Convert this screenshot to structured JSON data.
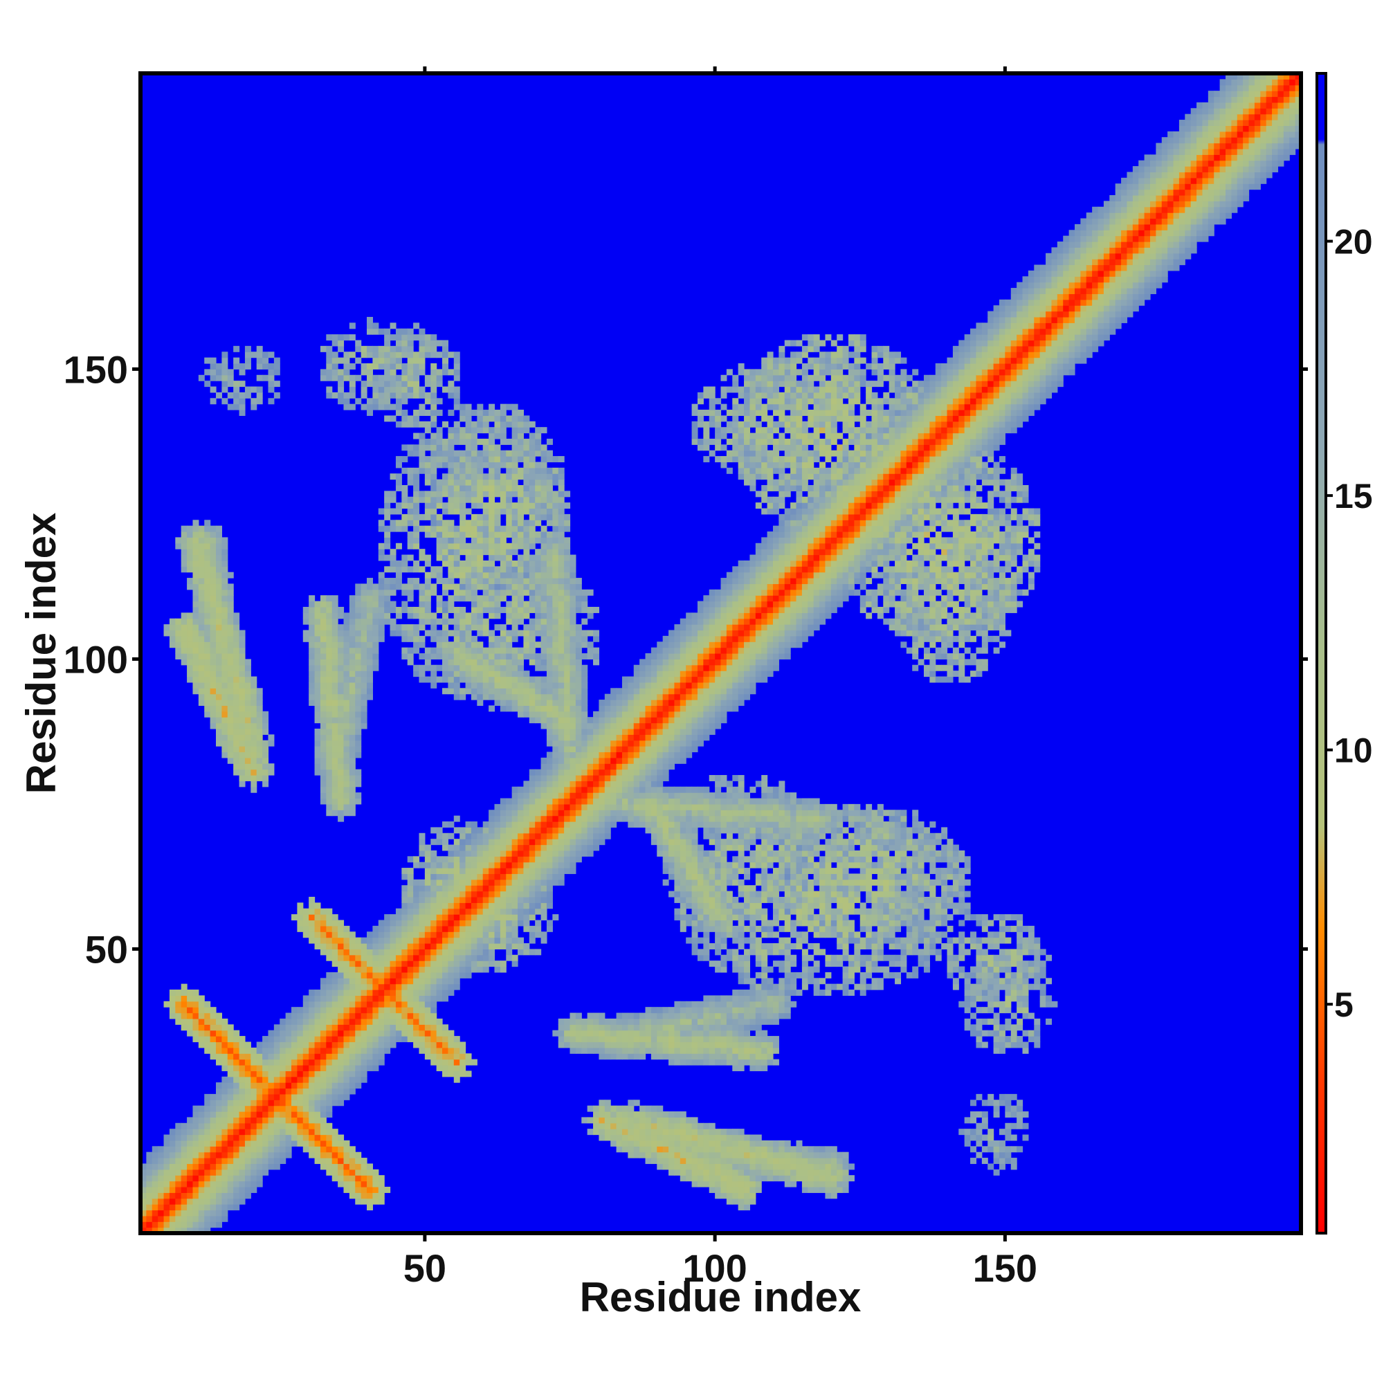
{
  "chart_data": {
    "type": "heatmap",
    "title": "",
    "xlabel": "Residue index",
    "ylabel": "Residue index",
    "n_residues": 200,
    "xlim": [
      1,
      201
    ],
    "ylim": [
      1,
      201
    ],
    "x_ticks": [
      {
        "value": 50,
        "label": "50"
      },
      {
        "value": 100,
        "label": "100"
      },
      {
        "value": 150,
        "label": "150"
      }
    ],
    "y_ticks": [
      {
        "value": 50,
        "label": "50"
      },
      {
        "value": 100,
        "label": "100"
      },
      {
        "value": 150,
        "label": "150"
      }
    ],
    "colorbar": {
      "range": [
        0.5,
        23.3
      ],
      "ticks": [
        {
          "value": 5,
          "label": "5"
        },
        {
          "value": 10,
          "label": "10"
        },
        {
          "value": 15,
          "label": "15"
        },
        {
          "value": 20,
          "label": "20"
        }
      ],
      "stops": [
        {
          "value": 0.5,
          "color": "#ff0000"
        },
        {
          "value": 3.5,
          "color": "#ff3a00"
        },
        {
          "value": 6.5,
          "color": "#ff8c00"
        },
        {
          "value": 8.5,
          "color": "#b5c27a"
        },
        {
          "value": 12.0,
          "color": "#a9bf8a"
        },
        {
          "value": 16.0,
          "color": "#8ea8b4"
        },
        {
          "value": 21.9,
          "color": "#6f8ec0"
        },
        {
          "value": 22.0,
          "color": "#0000f5"
        },
        {
          "value": 23.3,
          "color": "#0000f5"
        }
      ]
    },
    "background_value": 23,
    "diagonal_band": {
      "center_value": 1,
      "halfwidth_residues": 4
    },
    "contact_segments": [
      {
        "x1": 8,
        "y1": 40,
        "x2": 40,
        "y2": 8,
        "value": 6
      },
      {
        "x1": 30,
        "y1": 55,
        "x2": 53,
        "y2": 32,
        "value": 6.5
      },
      {
        "x1": 20,
        "y1": 80,
        "x2": 8,
        "y2": 105,
        "value": 9
      },
      {
        "x1": 12,
        "y1": 120,
        "x2": 14,
        "y2": 100,
        "value": 12
      },
      {
        "x1": 34,
        "y1": 80,
        "x2": 40,
        "y2": 110,
        "value": 13
      },
      {
        "x1": 78,
        "y1": 75,
        "x2": 118,
        "y2": 72,
        "value": 12
      },
      {
        "x1": 75,
        "y1": 35,
        "x2": 108,
        "y2": 32,
        "value": 11
      },
      {
        "x1": 85,
        "y1": 20,
        "x2": 120,
        "y2": 10,
        "value": 10
      },
      {
        "x1": 55,
        "y1": 100,
        "x2": 75,
        "y2": 88,
        "value": 11
      }
    ],
    "contact_blobs": [
      {
        "x": 40,
        "y": 150,
        "rx": 9,
        "ry": 8,
        "value": 13
      },
      {
        "x": 62,
        "y": 128,
        "rx": 12,
        "ry": 16,
        "value": 12
      },
      {
        "x": 115,
        "y": 140,
        "rx": 20,
        "ry": 12,
        "value": 12
      },
      {
        "x": 138,
        "y": 120,
        "rx": 18,
        "ry": 18,
        "value": 11
      },
      {
        "x": 118,
        "y": 58,
        "rx": 26,
        "ry": 17,
        "value": 12
      },
      {
        "x": 148,
        "y": 48,
        "rx": 9,
        "ry": 8,
        "value": 13
      },
      {
        "x": 148,
        "y": 18,
        "rx": 6,
        "ry": 7,
        "value": 15
      },
      {
        "x": 55,
        "y": 60,
        "rx": 10,
        "ry": 12,
        "value": 12
      },
      {
        "x": 66,
        "y": 104,
        "rx": 14,
        "ry": 14,
        "value": 13
      }
    ]
  }
}
